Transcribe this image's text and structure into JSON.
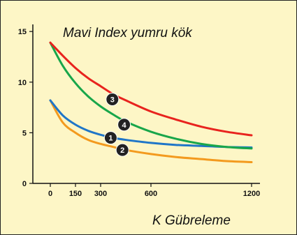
{
  "chart_data": {
    "type": "line",
    "title": "Mavi Index yumru kök",
    "xlabel": "K Gübreleme",
    "ylabel": "",
    "x_ticks": [
      "0",
      "150",
      "300",
      "600",
      "1200"
    ],
    "y_ticks": [
      "0",
      "5",
      "10",
      "15"
    ],
    "xlim": [
      0,
      1200
    ],
    "ylim": [
      0,
      15.7
    ],
    "grid": false,
    "legend": "inline",
    "series": [
      {
        "marker": "1",
        "color": "#1f76c8",
        "x": [
          0,
          75,
          150,
          225,
          300,
          375,
          450,
          600,
          750,
          900,
          1050,
          1200
        ],
        "y": [
          8.2,
          6.7,
          5.8,
          5.2,
          4.8,
          4.5,
          4.3,
          4.0,
          3.8,
          3.7,
          3.6,
          3.55
        ],
        "label_x": 360,
        "label_y": 4.5
      },
      {
        "marker": "2",
        "color": "#f39a1e",
        "x": [
          0,
          75,
          150,
          225,
          300,
          375,
          450,
          600,
          750,
          900,
          1050,
          1200
        ],
        "y": [
          8.2,
          6.0,
          5.0,
          4.3,
          3.9,
          3.6,
          3.3,
          2.9,
          2.6,
          2.4,
          2.2,
          2.1
        ],
        "label_x": 430,
        "label_y": 3.3
      },
      {
        "marker": "3",
        "color": "#e8231e",
        "x": [
          0,
          75,
          150,
          225,
          300,
          375,
          450,
          600,
          750,
          900,
          1050,
          1200
        ],
        "y": [
          13.9,
          12.6,
          11.4,
          10.4,
          9.6,
          8.8,
          8.2,
          7.1,
          6.3,
          5.6,
          5.1,
          4.75
        ],
        "label_x": 370,
        "label_y": 8.3
      },
      {
        "marker": "4",
        "color": "#18a64a",
        "x": [
          0,
          75,
          150,
          225,
          300,
          375,
          450,
          600,
          750,
          900,
          1050,
          1200
        ],
        "y": [
          13.9,
          11.6,
          9.9,
          8.6,
          7.6,
          6.8,
          6.1,
          5.1,
          4.4,
          3.9,
          3.6,
          3.45
        ],
        "label_x": 440,
        "label_y": 5.8
      }
    ]
  }
}
